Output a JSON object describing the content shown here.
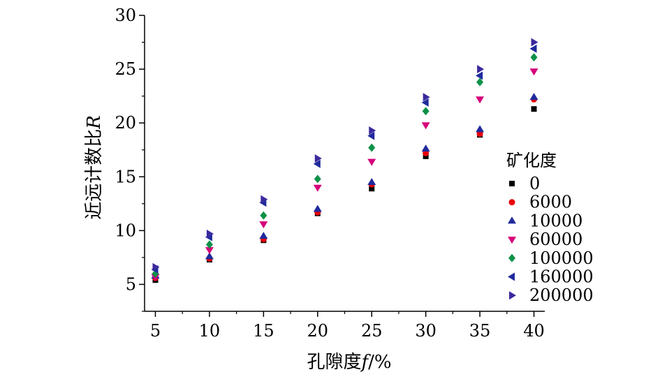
{
  "chart_data": {
    "type": "scatter",
    "title": "",
    "xlabel": "孔隙度f/%",
    "xlabel_main": "孔隙度",
    "xlabel_var": "f",
    "xlabel_unit": "/%",
    "ylabel": "近远计数比R",
    "ylabel_main": "近远计数比",
    "ylabel_var": "R",
    "xlim": [
      4,
      41
    ],
    "ylim": [
      2.5,
      30
    ],
    "xticks": [
      5,
      10,
      15,
      20,
      25,
      30,
      35,
      40
    ],
    "yticks": [
      5,
      10,
      15,
      20,
      25,
      30
    ],
    "grid": false,
    "legend_title": "矿化度",
    "legend_position": "right",
    "x": [
      5,
      10,
      15,
      20,
      25,
      30,
      35,
      40
    ],
    "series": [
      {
        "name": "0",
        "marker": "square",
        "color": "#000000",
        "values": [
          5.4,
          7.3,
          9.1,
          11.6,
          13.9,
          16.9,
          18.9,
          21.3
        ]
      },
      {
        "name": "6000",
        "marker": "circle",
        "color": "#e8000b",
        "values": [
          5.6,
          7.4,
          9.2,
          11.7,
          14.3,
          17.2,
          19.0,
          22.2
        ]
      },
      {
        "name": "10000",
        "marker": "triangle-up",
        "color": "#1f2a9c",
        "values": [
          5.8,
          7.6,
          9.5,
          12.0,
          14.5,
          17.6,
          19.4,
          22.4
        ]
      },
      {
        "name": "60000",
        "marker": "triangle-down",
        "color": "#d6007a",
        "values": [
          5.7,
          8.2,
          10.6,
          14.0,
          16.4,
          19.8,
          22.2,
          24.8
        ]
      },
      {
        "name": "100000",
        "marker": "diamond",
        "color": "#0d9148",
        "values": [
          6.0,
          8.7,
          11.4,
          14.8,
          17.7,
          21.1,
          23.8,
          26.1
        ]
      },
      {
        "name": "160000",
        "marker": "triangle-left",
        "color": "#1f2a9c",
        "values": [
          6.4,
          9.4,
          12.6,
          16.2,
          18.8,
          21.9,
          24.4,
          26.9
        ]
      },
      {
        "name": "200000",
        "marker": "triangle-right",
        "color": "#3a2a9c",
        "values": [
          6.6,
          9.7,
          12.9,
          16.7,
          19.3,
          22.4,
          25.0,
          27.5
        ]
      }
    ]
  }
}
